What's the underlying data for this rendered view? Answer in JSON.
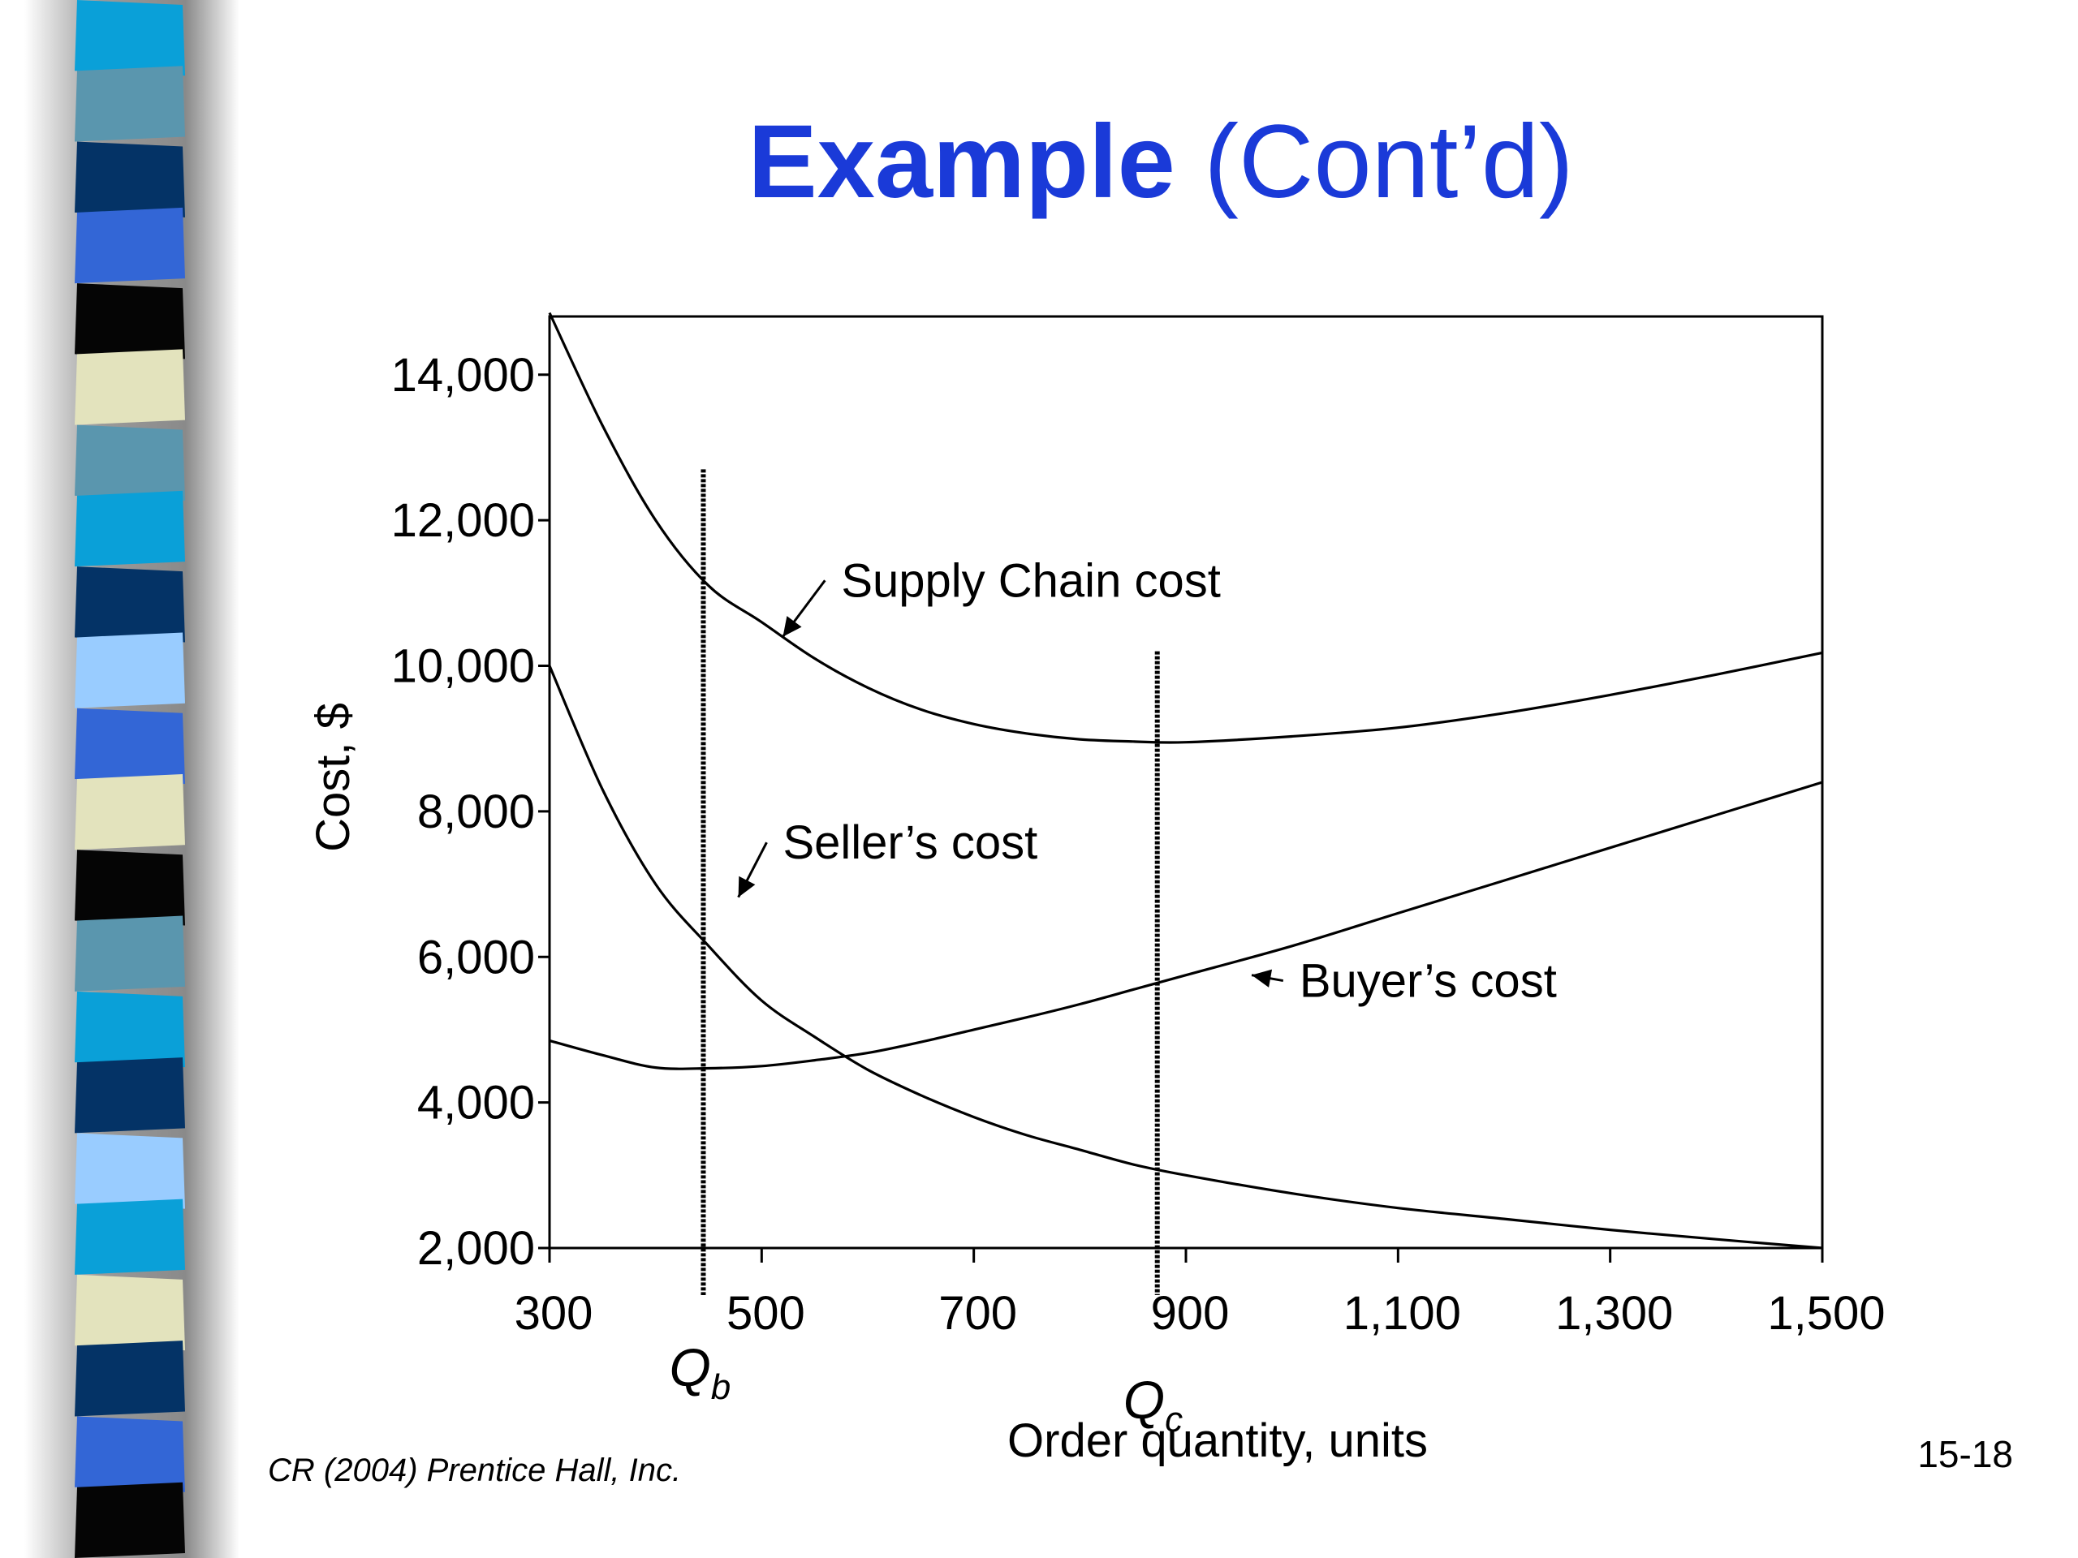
{
  "slide": {
    "title_bold": "Example",
    "title_rest": " (Cont’d)",
    "footer": "CR (2004) Prentice Hall, Inc.",
    "page_number": "15-18",
    "stripe_colors": [
      "#0aa0d8",
      "#5a96ae",
      "#043366",
      "#3366d6",
      "#050505",
      "#e3e3bd",
      "#5a96ae",
      "#0aa0d8",
      "#043366",
      "#99ccff",
      "#3366d6",
      "#e3e3bd",
      "#050505",
      "#5a96ae",
      "#0aa0d8",
      "#043366",
      "#99ccff",
      "#0aa0d8",
      "#e3e3bd",
      "#043366",
      "#3366d6",
      "#050505"
    ]
  },
  "chart_data": {
    "type": "line",
    "xlabel": "Order quantity, units",
    "ylabel": "Cost, $",
    "xlim": [
      300,
      1500
    ],
    "ylim": [
      2000,
      15000
    ],
    "x_ticks": [
      300,
      500,
      700,
      900,
      1100,
      1300,
      1500
    ],
    "x_tick_labels": [
      "300",
      "500",
      "700",
      "900",
      "1,100",
      "1,300",
      "1,500"
    ],
    "y_ticks": [
      2000,
      4000,
      6000,
      8000,
      10000,
      12000,
      14000
    ],
    "y_tick_labels": [
      "2,000",
      "4,000",
      "6,000",
      "8,000",
      "10,000",
      "12,000",
      "14,000"
    ],
    "series": [
      {
        "name": "Supply Chain cost",
        "x": [
          300,
          350,
          400,
          450,
          500,
          550,
          600,
          650,
          700,
          750,
          800,
          850,
          900,
          1000,
          1100,
          1200,
          1300,
          1400,
          1500
        ],
        "y": [
          14850,
          13300,
          12000,
          11100,
          10600,
          10100,
          9700,
          9400,
          9200,
          9070,
          8990,
          8960,
          8950,
          9030,
          9150,
          9350,
          9600,
          9880,
          10180
        ]
      },
      {
        "name": "Seller’s cost",
        "x": [
          300,
          350,
          400,
          450,
          500,
          550,
          600,
          650,
          700,
          750,
          800,
          850,
          900,
          1000,
          1100,
          1200,
          1300,
          1400,
          1500
        ],
        "y": [
          10000,
          8300,
          7000,
          6150,
          5400,
          4900,
          4450,
          4100,
          3800,
          3550,
          3350,
          3150,
          3000,
          2750,
          2550,
          2400,
          2250,
          2120,
          2000
        ]
      },
      {
        "name": "Buyer’s cost",
        "x": [
          300,
          350,
          400,
          450,
          500,
          550,
          600,
          650,
          700,
          750,
          800,
          850,
          900,
          1000,
          1100,
          1200,
          1300,
          1400,
          1500
        ],
        "y": [
          4850,
          4650,
          4480,
          4470,
          4500,
          4580,
          4680,
          4830,
          5000,
          5170,
          5350,
          5550,
          5750,
          6150,
          6600,
          7050,
          7500,
          7950,
          8400
        ]
      }
    ],
    "vlines": [
      {
        "x": 445,
        "label_main": "Q",
        "label_sub": "b",
        "top": 12700
      },
      {
        "x": 873,
        "label_main": "Q",
        "label_sub": "c",
        "top": 10200
      }
    ],
    "annotations": [
      {
        "series": 0,
        "text": "Supply Chain cost",
        "arrow_x": 520,
        "arrow_y": 10400,
        "text_x": 575,
        "text_y": 10950
      },
      {
        "series": 1,
        "text": "Seller’s cost",
        "arrow_x": 478,
        "arrow_y": 6820,
        "text_x": 520,
        "text_y": 7350
      },
      {
        "series": 2,
        "text": "Buyer’s cost",
        "arrow_x": 962,
        "arrow_y": 5750,
        "text_x": 1007,
        "text_y": 5450
      }
    ],
    "grid": false
  }
}
